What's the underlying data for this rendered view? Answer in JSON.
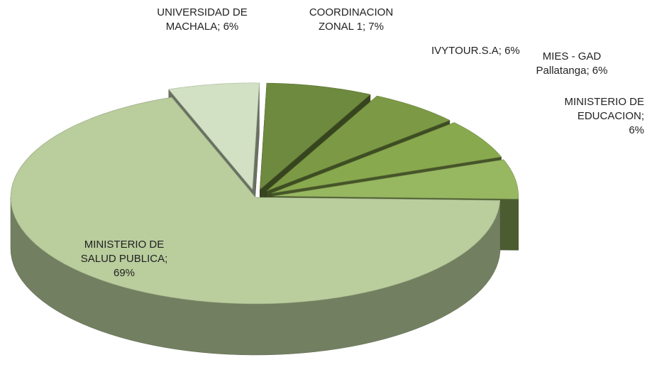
{
  "chart_data": {
    "type": "pie",
    "categories": [
      "UNIVERSIDAD DE MACHALA; 6%",
      "COORDINACION ZONAL 1; 7%",
      "IVYTOUR.S.A; 6%",
      "MIES - GAD Pallatanga; 6%",
      "MINISTERIO DE EDUCACION; 6%",
      "MINISTERIO DE SALUD PUBLICA; 69%"
    ],
    "values": [
      6,
      7,
      6,
      6,
      6,
      69
    ],
    "colors": [
      "#d2e1c3",
      "#6e8a3e",
      "#7c9a45",
      "#89a94f",
      "#97b761",
      "#b9cd9d"
    ]
  }
}
